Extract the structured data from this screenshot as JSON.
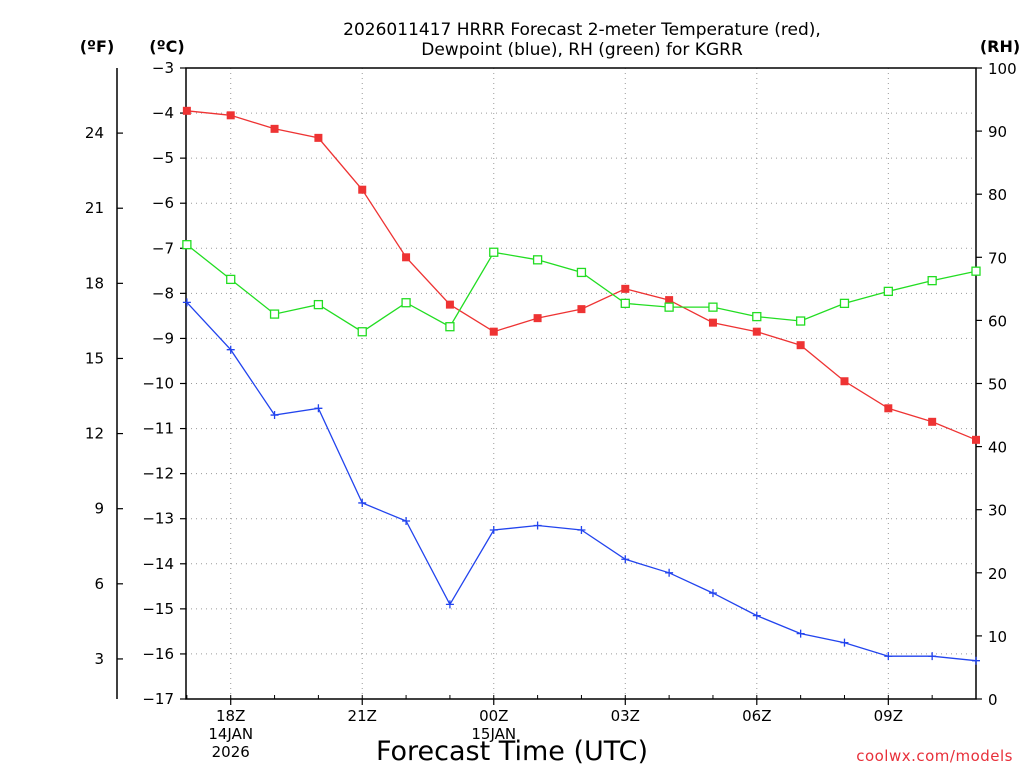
{
  "chart_data": {
    "type": "line",
    "title_line1": "2026011417 HRRR Forecast 2-meter Temperature (red),",
    "title_line2": "Dewpoint (blue), RH (green) for KGRR",
    "xlabel": "Forecast Time (UTC)",
    "credit": "coolwx.com/models",
    "units": {
      "fahrenheit": "(ºF)",
      "celsius": "(ºC)",
      "rh": "(RH)"
    },
    "x_hours": [
      17,
      18,
      19,
      20,
      21,
      22,
      23,
      24,
      25,
      26,
      27,
      28,
      29,
      30,
      31,
      32,
      33,
      34,
      35
    ],
    "x_ticks": [
      {
        "hour": 18,
        "lines": [
          "18Z",
          "14JAN",
          "2026"
        ]
      },
      {
        "hour": 21,
        "lines": [
          "21Z"
        ]
      },
      {
        "hour": 24,
        "lines": [
          "00Z",
          "15JAN"
        ]
      },
      {
        "hour": 27,
        "lines": [
          "03Z"
        ]
      },
      {
        "hour": 30,
        "lines": [
          "06Z"
        ]
      },
      {
        "hour": 33,
        "lines": [
          "09Z"
        ]
      }
    ],
    "celsius_axis": {
      "range": [
        -17,
        -3
      ],
      "ticks": [
        "−3",
        "−4",
        "−5",
        "−6",
        "−7",
        "−8",
        "−9",
        "−10",
        "−11",
        "−12",
        "−13",
        "−14",
        "−15",
        "−16",
        "−17"
      ]
    },
    "fahrenheit_axis": {
      "ticks": [
        "24",
        "21",
        "18",
        "15",
        "12",
        "9",
        "6",
        "3"
      ]
    },
    "rh_axis": {
      "range": [
        0,
        100
      ],
      "ticks": [
        "100",
        "90",
        "80",
        "70",
        "60",
        "50",
        "40",
        "30",
        "20",
        "10",
        "0"
      ]
    },
    "series": [
      {
        "name": "Temperature",
        "unit": "C",
        "color": "#ee3333",
        "marker": "filled-square",
        "values": [
          -3.95,
          -4.05,
          -4.35,
          -4.55,
          -5.7,
          -7.2,
          -8.25,
          -8.85,
          -8.55,
          -8.35,
          -7.9,
          -8.15,
          -8.65,
          -8.85,
          -9.15,
          -9.95,
          -10.55,
          -10.85,
          -11.25
        ]
      },
      {
        "name": "Dewpoint",
        "unit": "C",
        "color": "#2244ee",
        "marker": "plus",
        "values": [
          -8.2,
          -9.25,
          -10.7,
          -10.55,
          -12.65,
          -13.05,
          -14.9,
          -13.25,
          -13.15,
          -13.25,
          -13.9,
          -14.2,
          -14.65,
          -15.15,
          -15.55,
          -15.75,
          -16.05,
          -16.05,
          -16.15
        ]
      },
      {
        "name": "RH",
        "unit": "%",
        "color": "#22dd22",
        "marker": "open-square",
        "values": [
          72,
          66.5,
          61,
          62.5,
          58.2,
          62.8,
          59,
          70.8,
          69.6,
          67.6,
          62.7,
          62.1,
          62.1,
          60.6,
          59.9,
          62.7,
          64.6,
          66.3,
          67.8
        ]
      }
    ]
  }
}
